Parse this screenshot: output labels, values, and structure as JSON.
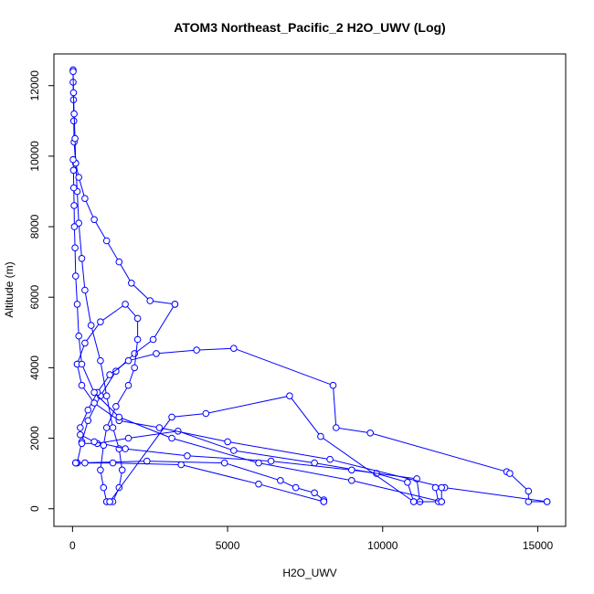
{
  "chart_data": {
    "type": "line",
    "title": "ATOM3 Northeast_Pacific_2 H2O_UWV (Log)",
    "xlabel": "H2O_UWV",
    "ylabel": "Altitude (m)",
    "xlim": [
      -600,
      15900
    ],
    "ylim": [
      -500,
      12900
    ],
    "x_ticks": [
      0,
      5000,
      10000,
      15000
    ],
    "x_tick_labels": [
      "0",
      "5000",
      "10000",
      "15000"
    ],
    "y_ticks": [
      0,
      2000,
      4000,
      6000,
      8000,
      10000,
      12000
    ],
    "y_tick_labels": [
      "0",
      "2000",
      "4000",
      "6000",
      "8000",
      "10000",
      "12000"
    ],
    "marker": "open-circle",
    "series_color": "#0000ff",
    "grid": false,
    "series": [
      {
        "points": [
          [
            1100,
            200
          ],
          [
            1300,
            200
          ],
          [
            1500,
            600
          ],
          [
            1600,
            1100
          ],
          [
            1500,
            1700
          ],
          [
            1300,
            2300
          ],
          [
            1100,
            3200
          ],
          [
            900,
            4200
          ],
          [
            600,
            5200
          ],
          [
            400,
            6200
          ],
          [
            300,
            7100
          ],
          [
            200,
            8100
          ],
          [
            150,
            9000
          ],
          [
            100,
            9800
          ],
          [
            50,
            10400
          ],
          [
            40,
            11000
          ],
          [
            30,
            11600
          ],
          [
            20,
            12100
          ],
          [
            20,
            12450
          ]
        ]
      },
      {
        "points": [
          [
            20,
            12400
          ],
          [
            30,
            11800
          ],
          [
            50,
            11200
          ],
          [
            80,
            10500
          ],
          [
            100,
            9800
          ],
          [
            200,
            9400
          ],
          [
            400,
            8800
          ],
          [
            700,
            8200
          ],
          [
            1100,
            7600
          ],
          [
            1500,
            7000
          ],
          [
            1900,
            6400
          ],
          [
            2500,
            5900
          ],
          [
            3300,
            5800
          ]
        ]
      },
      {
        "points": [
          [
            3300,
            5800
          ],
          [
            2600,
            4800
          ],
          [
            2000,
            4400
          ],
          [
            1400,
            3900
          ],
          [
            900,
            3200
          ],
          [
            500,
            2500
          ],
          [
            300,
            1900
          ],
          [
            150,
            1300
          ]
        ]
      },
      {
        "points": [
          [
            100,
            1300
          ],
          [
            2400,
            1350
          ],
          [
            4900,
            1300
          ],
          [
            6700,
            800
          ],
          [
            7200,
            600
          ],
          [
            7800,
            450
          ],
          [
            8100,
            250
          ],
          [
            8100,
            200
          ]
        ]
      },
      {
        "points": [
          [
            8100,
            200
          ],
          [
            6000,
            700
          ],
          [
            3500,
            1250
          ],
          [
            1300,
            1300
          ],
          [
            400,
            1300
          ],
          [
            100,
            1300
          ]
        ]
      },
      {
        "points": [
          [
            300,
            1850
          ],
          [
            800,
            1850
          ],
          [
            1800,
            2000
          ],
          [
            3400,
            2200
          ],
          [
            5200,
            1650
          ],
          [
            7800,
            1300
          ],
          [
            9800,
            1000
          ],
          [
            10800,
            750
          ],
          [
            11000,
            200
          ],
          [
            11200,
            200
          ]
        ]
      },
      {
        "points": [
          [
            11200,
            200
          ],
          [
            11100,
            850
          ],
          [
            9000,
            1100
          ],
          [
            6400,
            1350
          ],
          [
            3700,
            1500
          ],
          [
            1700,
            1700
          ],
          [
            700,
            1900
          ],
          [
            250,
            2100
          ]
        ]
      },
      {
        "points": [
          [
            250,
            2300
          ],
          [
            500,
            2800
          ],
          [
            800,
            3300
          ],
          [
            1200,
            3800
          ],
          [
            1800,
            4200
          ],
          [
            2700,
            4400
          ],
          [
            4000,
            4500
          ],
          [
            5200,
            4550
          ],
          [
            8400,
            3500
          ],
          [
            8500,
            2300
          ],
          [
            9600,
            2150
          ],
          [
            14000,
            1050
          ],
          [
            14100,
            1000
          ],
          [
            14700,
            500
          ],
          [
            14700,
            200
          ],
          [
            15300,
            200
          ]
        ]
      },
      {
        "points": [
          [
            15300,
            200
          ],
          [
            12000,
            600
          ],
          [
            8300,
            1400
          ],
          [
            5000,
            1900
          ],
          [
            2800,
            2300
          ],
          [
            1500,
            2500
          ],
          [
            700,
            3000
          ],
          [
            300,
            3500
          ],
          [
            150,
            4100
          ]
        ]
      },
      {
        "points": [
          [
            150,
            4100
          ],
          [
            400,
            4700
          ],
          [
            900,
            5300
          ],
          [
            1700,
            5800
          ],
          [
            2100,
            5400
          ],
          [
            2100,
            4800
          ],
          [
            2000,
            4000
          ],
          [
            1800,
            3500
          ],
          [
            1400,
            2900
          ],
          [
            1100,
            2300
          ],
          [
            1000,
            1800
          ],
          [
            900,
            1100
          ],
          [
            1000,
            600
          ],
          [
            1100,
            200
          ],
          [
            1200,
            200
          ]
        ]
      },
      {
        "points": [
          [
            1200,
            200
          ],
          [
            3200,
            2600
          ],
          [
            4300,
            2700
          ],
          [
            7000,
            3200
          ],
          [
            8000,
            2050
          ],
          [
            11000,
            200
          ],
          [
            11800,
            200
          ],
          [
            11700,
            600
          ],
          [
            11900,
            600
          ],
          [
            11900,
            200
          ]
        ]
      },
      {
        "points": [
          [
            11900,
            200
          ],
          [
            9000,
            800
          ],
          [
            6000,
            1300
          ],
          [
            3200,
            2000
          ],
          [
            1500,
            2600
          ],
          [
            700,
            3300
          ],
          [
            300,
            4100
          ],
          [
            200,
            4900
          ],
          [
            150,
            5800
          ],
          [
            100,
            6600
          ],
          [
            80,
            7400
          ],
          [
            60,
            8000
          ],
          [
            50,
            8600
          ],
          [
            40,
            9100
          ],
          [
            30,
            9600
          ],
          [
            20,
            9900
          ]
        ]
      }
    ]
  }
}
